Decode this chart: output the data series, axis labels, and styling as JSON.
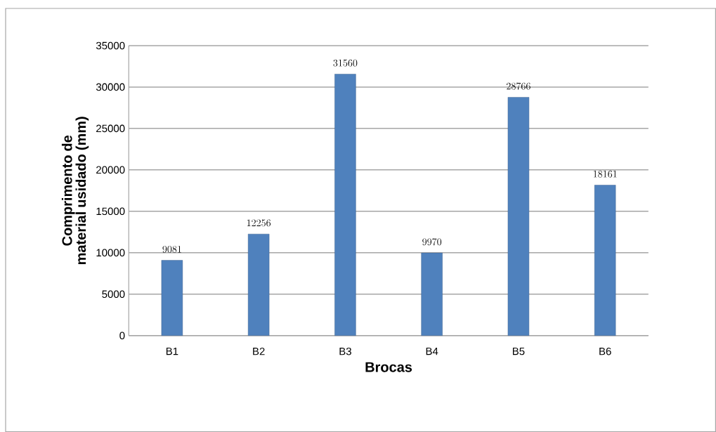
{
  "chart_data": {
    "type": "bar",
    "xlabel": "Brocas",
    "ylabel": "Comprimento de material usidado (mm)",
    "categories": [
      "B1",
      "B2",
      "B3",
      "B4",
      "B5",
      "B6"
    ],
    "values": [
      9081,
      12256,
      31560,
      9970,
      28766,
      18161
    ],
    "color": "#4f81bd",
    "ylim": [
      0,
      35000
    ],
    "yticks": [
      0,
      5000,
      10000,
      15000,
      20000,
      25000,
      30000,
      35000
    ],
    "grid": "y",
    "data_labels": true
  }
}
